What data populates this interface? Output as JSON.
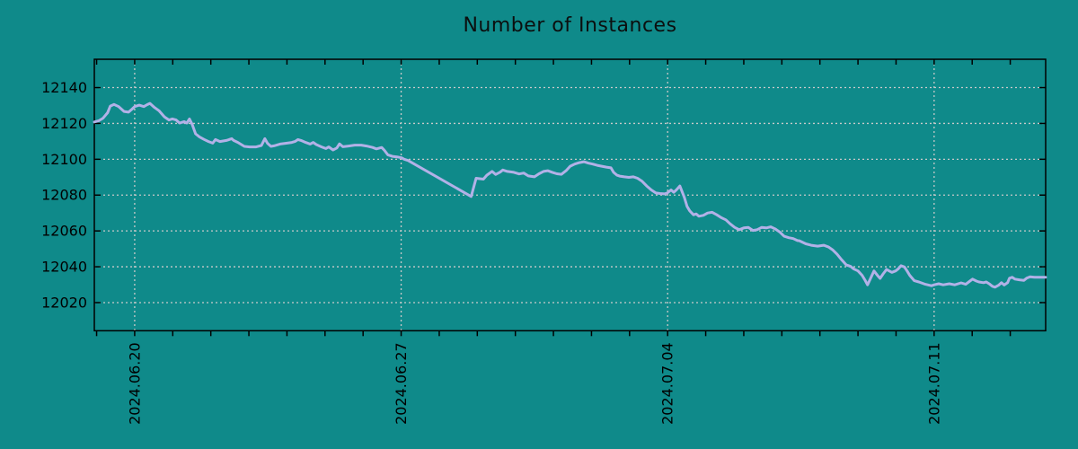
{
  "colors": {
    "background": "#0f8a8a",
    "line": "#b2b1e7",
    "grid": "#c9c9c9",
    "frame": "#000000",
    "text": "#000000"
  },
  "chart_data": {
    "type": "line",
    "title": "Number of Instances",
    "legend": false,
    "grid": "dotted",
    "x_axis": {
      "unit": "days",
      "domain": [
        -0.06,
        24.93
      ],
      "minor_tick_step": 1,
      "ticks": [
        {
          "pos": 1,
          "label": "2024.06.20"
        },
        {
          "pos": 8,
          "label": "2024.06.27"
        },
        {
          "pos": 15,
          "label": "2024.07.04"
        },
        {
          "pos": 22,
          "label": "2024.07.11"
        }
      ]
    },
    "y_axis": {
      "domain": [
        12004.3,
        12155.8
      ],
      "tick_values": [
        12020,
        12040,
        12060,
        12080,
        12100,
        12120,
        12140
      ]
    },
    "series": [
      {
        "name": "Number of Instances",
        "color": "#b2b1e7",
        "points": [
          [
            -0.06,
            12120.8
          ],
          [
            0.06,
            12121.5
          ],
          [
            0.17,
            12122.9
          ],
          [
            0.29,
            12126.0
          ],
          [
            0.36,
            12129.7
          ],
          [
            0.46,
            12130.6
          ],
          [
            0.58,
            12129.4
          ],
          [
            0.72,
            12126.7
          ],
          [
            0.84,
            12126.3
          ],
          [
            0.93,
            12128.0
          ],
          [
            1.0,
            12129.4
          ],
          [
            1.12,
            12130.2
          ],
          [
            1.24,
            12129.4
          ],
          [
            1.33,
            12130.5
          ],
          [
            1.4,
            12131.2
          ],
          [
            1.52,
            12128.9
          ],
          [
            1.64,
            12127.1
          ],
          [
            1.78,
            12123.7
          ],
          [
            1.9,
            12121.9
          ],
          [
            1.99,
            12122.5
          ],
          [
            2.09,
            12121.9
          ],
          [
            2.18,
            12120.2
          ],
          [
            2.3,
            12121.0
          ],
          [
            2.37,
            12120.2
          ],
          [
            2.44,
            12122.5
          ],
          [
            2.51,
            12119.5
          ],
          [
            2.6,
            12114.2
          ],
          [
            2.7,
            12112.5
          ],
          [
            2.82,
            12111.1
          ],
          [
            2.94,
            12109.9
          ],
          [
            3.05,
            12109.0
          ],
          [
            3.12,
            12111.0
          ],
          [
            3.24,
            12109.9
          ],
          [
            3.41,
            12110.5
          ],
          [
            3.55,
            12111.5
          ],
          [
            3.6,
            12110.5
          ],
          [
            3.71,
            12109.4
          ],
          [
            3.88,
            12107.2
          ],
          [
            4.02,
            12106.9
          ],
          [
            4.19,
            12106.9
          ],
          [
            4.33,
            12107.7
          ],
          [
            4.42,
            12111.5
          ],
          [
            4.49,
            12108.9
          ],
          [
            4.58,
            12107.2
          ],
          [
            4.66,
            12107.5
          ],
          [
            4.82,
            12108.5
          ],
          [
            4.96,
            12108.9
          ],
          [
            5.13,
            12109.4
          ],
          [
            5.21,
            12109.9
          ],
          [
            5.29,
            12111.0
          ],
          [
            5.37,
            12110.5
          ],
          [
            5.49,
            12109.4
          ],
          [
            5.61,
            12108.5
          ],
          [
            5.69,
            12109.4
          ],
          [
            5.77,
            12108.2
          ],
          [
            5.91,
            12106.9
          ],
          [
            6.02,
            12106.0
          ],
          [
            6.1,
            12106.9
          ],
          [
            6.21,
            12105.2
          ],
          [
            6.31,
            12106.3
          ],
          [
            6.38,
            12108.6
          ],
          [
            6.47,
            12107.0
          ],
          [
            6.62,
            12107.4
          ],
          [
            6.78,
            12107.9
          ],
          [
            6.95,
            12107.9
          ],
          [
            7.09,
            12107.4
          ],
          [
            7.25,
            12106.6
          ],
          [
            7.35,
            12105.8
          ],
          [
            7.49,
            12106.6
          ],
          [
            7.56,
            12105.0
          ],
          [
            7.65,
            12102.5
          ],
          [
            7.77,
            12101.6
          ],
          [
            7.89,
            12101.3
          ],
          [
            8.01,
            12100.8
          ],
          [
            8.08,
            12100.0
          ],
          [
            8.18,
            12099.3
          ],
          [
            9.84,
            12079.2
          ],
          [
            9.97,
            12089.4
          ],
          [
            10.16,
            12088.9
          ],
          [
            10.25,
            12091.1
          ],
          [
            10.39,
            12093.2
          ],
          [
            10.48,
            12091.5
          ],
          [
            10.6,
            12092.8
          ],
          [
            10.67,
            12094.0
          ],
          [
            10.79,
            12093.2
          ],
          [
            10.96,
            12092.7
          ],
          [
            11.1,
            12091.8
          ],
          [
            11.22,
            12092.3
          ],
          [
            11.34,
            12090.7
          ],
          [
            11.5,
            12090.2
          ],
          [
            11.62,
            12091.9
          ],
          [
            11.74,
            12093.2
          ],
          [
            11.85,
            12093.6
          ],
          [
            11.97,
            12092.7
          ],
          [
            12.09,
            12091.9
          ],
          [
            12.21,
            12091.6
          ],
          [
            12.33,
            12093.6
          ],
          [
            12.44,
            12096.1
          ],
          [
            12.56,
            12097.3
          ],
          [
            12.68,
            12098.1
          ],
          [
            12.8,
            12098.6
          ],
          [
            12.92,
            12097.8
          ],
          [
            13.03,
            12097.3
          ],
          [
            13.15,
            12096.6
          ],
          [
            13.27,
            12096.1
          ],
          [
            13.39,
            12095.6
          ],
          [
            13.51,
            12095.2
          ],
          [
            13.58,
            12092.7
          ],
          [
            13.67,
            12091.1
          ],
          [
            13.74,
            12090.6
          ],
          [
            13.86,
            12090.2
          ],
          [
            13.98,
            12089.9
          ],
          [
            14.1,
            12090.2
          ],
          [
            14.21,
            12089.4
          ],
          [
            14.33,
            12087.7
          ],
          [
            14.45,
            12085.1
          ],
          [
            14.57,
            12082.9
          ],
          [
            14.69,
            12081.2
          ],
          [
            14.8,
            12080.9
          ],
          [
            14.92,
            12080.7
          ],
          [
            14.99,
            12081.2
          ],
          [
            15.09,
            12082.9
          ],
          [
            15.16,
            12081.6
          ],
          [
            15.23,
            12082.9
          ],
          [
            15.32,
            12085.1
          ],
          [
            15.44,
            12078.7
          ],
          [
            15.51,
            12073.7
          ],
          [
            15.58,
            12071.2
          ],
          [
            15.68,
            12069.0
          ],
          [
            15.75,
            12069.5
          ],
          [
            15.82,
            12068.2
          ],
          [
            15.94,
            12068.7
          ],
          [
            16.05,
            12070.0
          ],
          [
            16.17,
            12070.4
          ],
          [
            16.29,
            12069.0
          ],
          [
            16.41,
            12067.4
          ],
          [
            16.53,
            12066.2
          ],
          [
            16.64,
            12064.0
          ],
          [
            16.76,
            12062.0
          ],
          [
            16.88,
            12060.7
          ],
          [
            17.0,
            12061.7
          ],
          [
            17.12,
            12062.0
          ],
          [
            17.24,
            12060.3
          ],
          [
            17.35,
            12060.7
          ],
          [
            17.47,
            12062.0
          ],
          [
            17.59,
            12061.7
          ],
          [
            17.71,
            12062.3
          ],
          [
            17.82,
            12061.2
          ],
          [
            17.94,
            12059.5
          ],
          [
            18.06,
            12057.0
          ],
          [
            18.18,
            12056.2
          ],
          [
            18.3,
            12055.7
          ],
          [
            18.41,
            12054.6
          ],
          [
            18.46,
            12054.5
          ],
          [
            18.63,
            12052.8
          ],
          [
            18.77,
            12052.0
          ],
          [
            18.94,
            12051.5
          ],
          [
            19.1,
            12052.0
          ],
          [
            19.22,
            12051.1
          ],
          [
            19.33,
            12049.5
          ],
          [
            19.45,
            12047.0
          ],
          [
            19.57,
            12043.9
          ],
          [
            19.69,
            12041.1
          ],
          [
            19.81,
            12040.2
          ],
          [
            19.88,
            12038.9
          ],
          [
            20.0,
            12037.7
          ],
          [
            20.11,
            12035.2
          ],
          [
            20.18,
            12032.7
          ],
          [
            20.25,
            12029.9
          ],
          [
            20.35,
            12034.4
          ],
          [
            20.42,
            12037.7
          ],
          [
            20.51,
            12035.2
          ],
          [
            20.58,
            12033.5
          ],
          [
            20.66,
            12036.0
          ],
          [
            20.75,
            12038.5
          ],
          [
            20.82,
            12037.7
          ],
          [
            20.89,
            12036.9
          ],
          [
            20.99,
            12037.7
          ],
          [
            21.06,
            12038.9
          ],
          [
            21.13,
            12040.6
          ],
          [
            21.22,
            12039.9
          ],
          [
            21.29,
            12037.7
          ],
          [
            21.36,
            12035.2
          ],
          [
            21.48,
            12032.2
          ],
          [
            21.6,
            12031.5
          ],
          [
            21.77,
            12030.2
          ],
          [
            21.93,
            12029.4
          ],
          [
            22.0,
            12029.9
          ],
          [
            22.12,
            12030.5
          ],
          [
            22.24,
            12029.9
          ],
          [
            22.4,
            12030.5
          ],
          [
            22.54,
            12029.9
          ],
          [
            22.71,
            12031.0
          ],
          [
            22.83,
            12030.2
          ],
          [
            22.94,
            12032.0
          ],
          [
            23.01,
            12033.1
          ],
          [
            23.11,
            12032.0
          ],
          [
            23.18,
            12031.5
          ],
          [
            23.3,
            12031.1
          ],
          [
            23.37,
            12031.5
          ],
          [
            23.46,
            12030.3
          ],
          [
            23.53,
            12029.1
          ],
          [
            23.6,
            12028.6
          ],
          [
            23.7,
            12029.8
          ],
          [
            23.77,
            12031.1
          ],
          [
            23.84,
            12029.8
          ],
          [
            23.93,
            12031.1
          ],
          [
            23.98,
            12033.6
          ],
          [
            24.05,
            12034.1
          ],
          [
            24.12,
            12033.1
          ],
          [
            24.24,
            12032.7
          ],
          [
            24.36,
            12032.4
          ],
          [
            24.43,
            12033.6
          ],
          [
            24.52,
            12034.4
          ],
          [
            24.64,
            12034.1
          ],
          [
            24.76,
            12034.1
          ],
          [
            24.93,
            12034.1
          ]
        ]
      }
    ]
  }
}
